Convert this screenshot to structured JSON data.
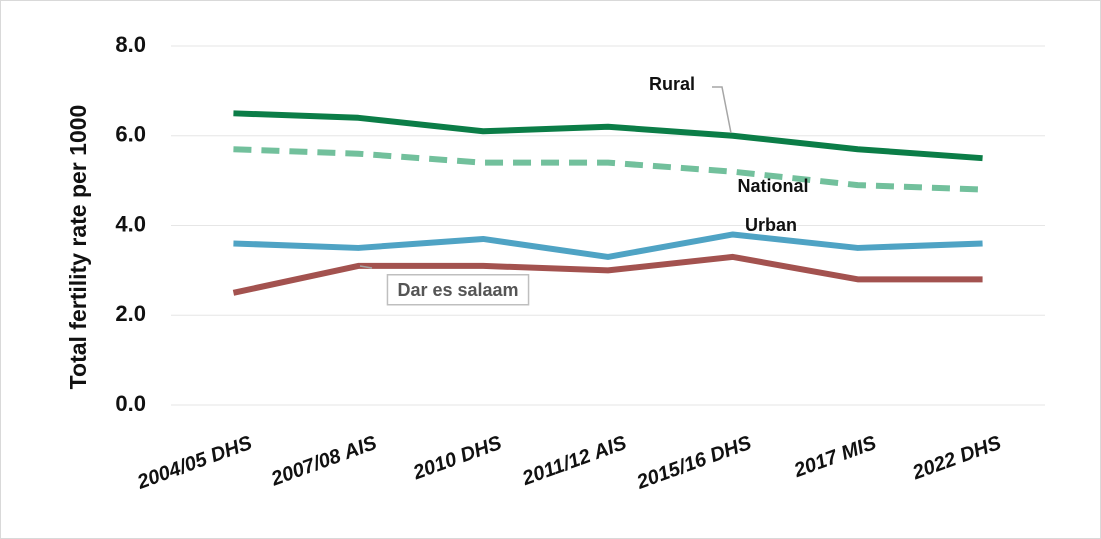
{
  "chart_data": {
    "type": "line",
    "y_label": "Total fertility rate per 1000",
    "categories": [
      "2004/05  DHS",
      "2007/08 AIS",
      "2010 DHS",
      "2011/12 AIS",
      "2015/16 DHS",
      "2017 MIS",
      "2022 DHS"
    ],
    "series": [
      {
        "name": "Rural",
        "color": "#0b7d47",
        "dashed": false,
        "values": [
          6.5,
          6.4,
          6.1,
          6.2,
          6.0,
          5.7,
          5.5
        ]
      },
      {
        "name": "National",
        "color": "#72c09c",
        "dashed": true,
        "values": [
          5.7,
          5.6,
          5.4,
          5.4,
          5.2,
          4.9,
          4.8
        ]
      },
      {
        "name": "Urban",
        "color": "#4fa3c4",
        "dashed": false,
        "values": [
          3.6,
          3.5,
          3.7,
          3.3,
          3.8,
          3.5,
          3.6
        ]
      },
      {
        "name": "Dar es salaam",
        "color": "#a3524f",
        "dashed": false,
        "values": [
          2.5,
          3.1,
          3.1,
          3.0,
          3.3,
          2.8,
          2.8
        ]
      }
    ],
    "ylim": [
      0,
      8
    ],
    "yticks": [
      {
        "value": 0,
        "label": "0.0"
      },
      {
        "value": 2,
        "label": "2.0"
      },
      {
        "value": 4,
        "label": "4.0"
      },
      {
        "value": 6,
        "label": "6.0"
      },
      {
        "value": 8,
        "label": "8.0"
      }
    ],
    "grid": true
  }
}
